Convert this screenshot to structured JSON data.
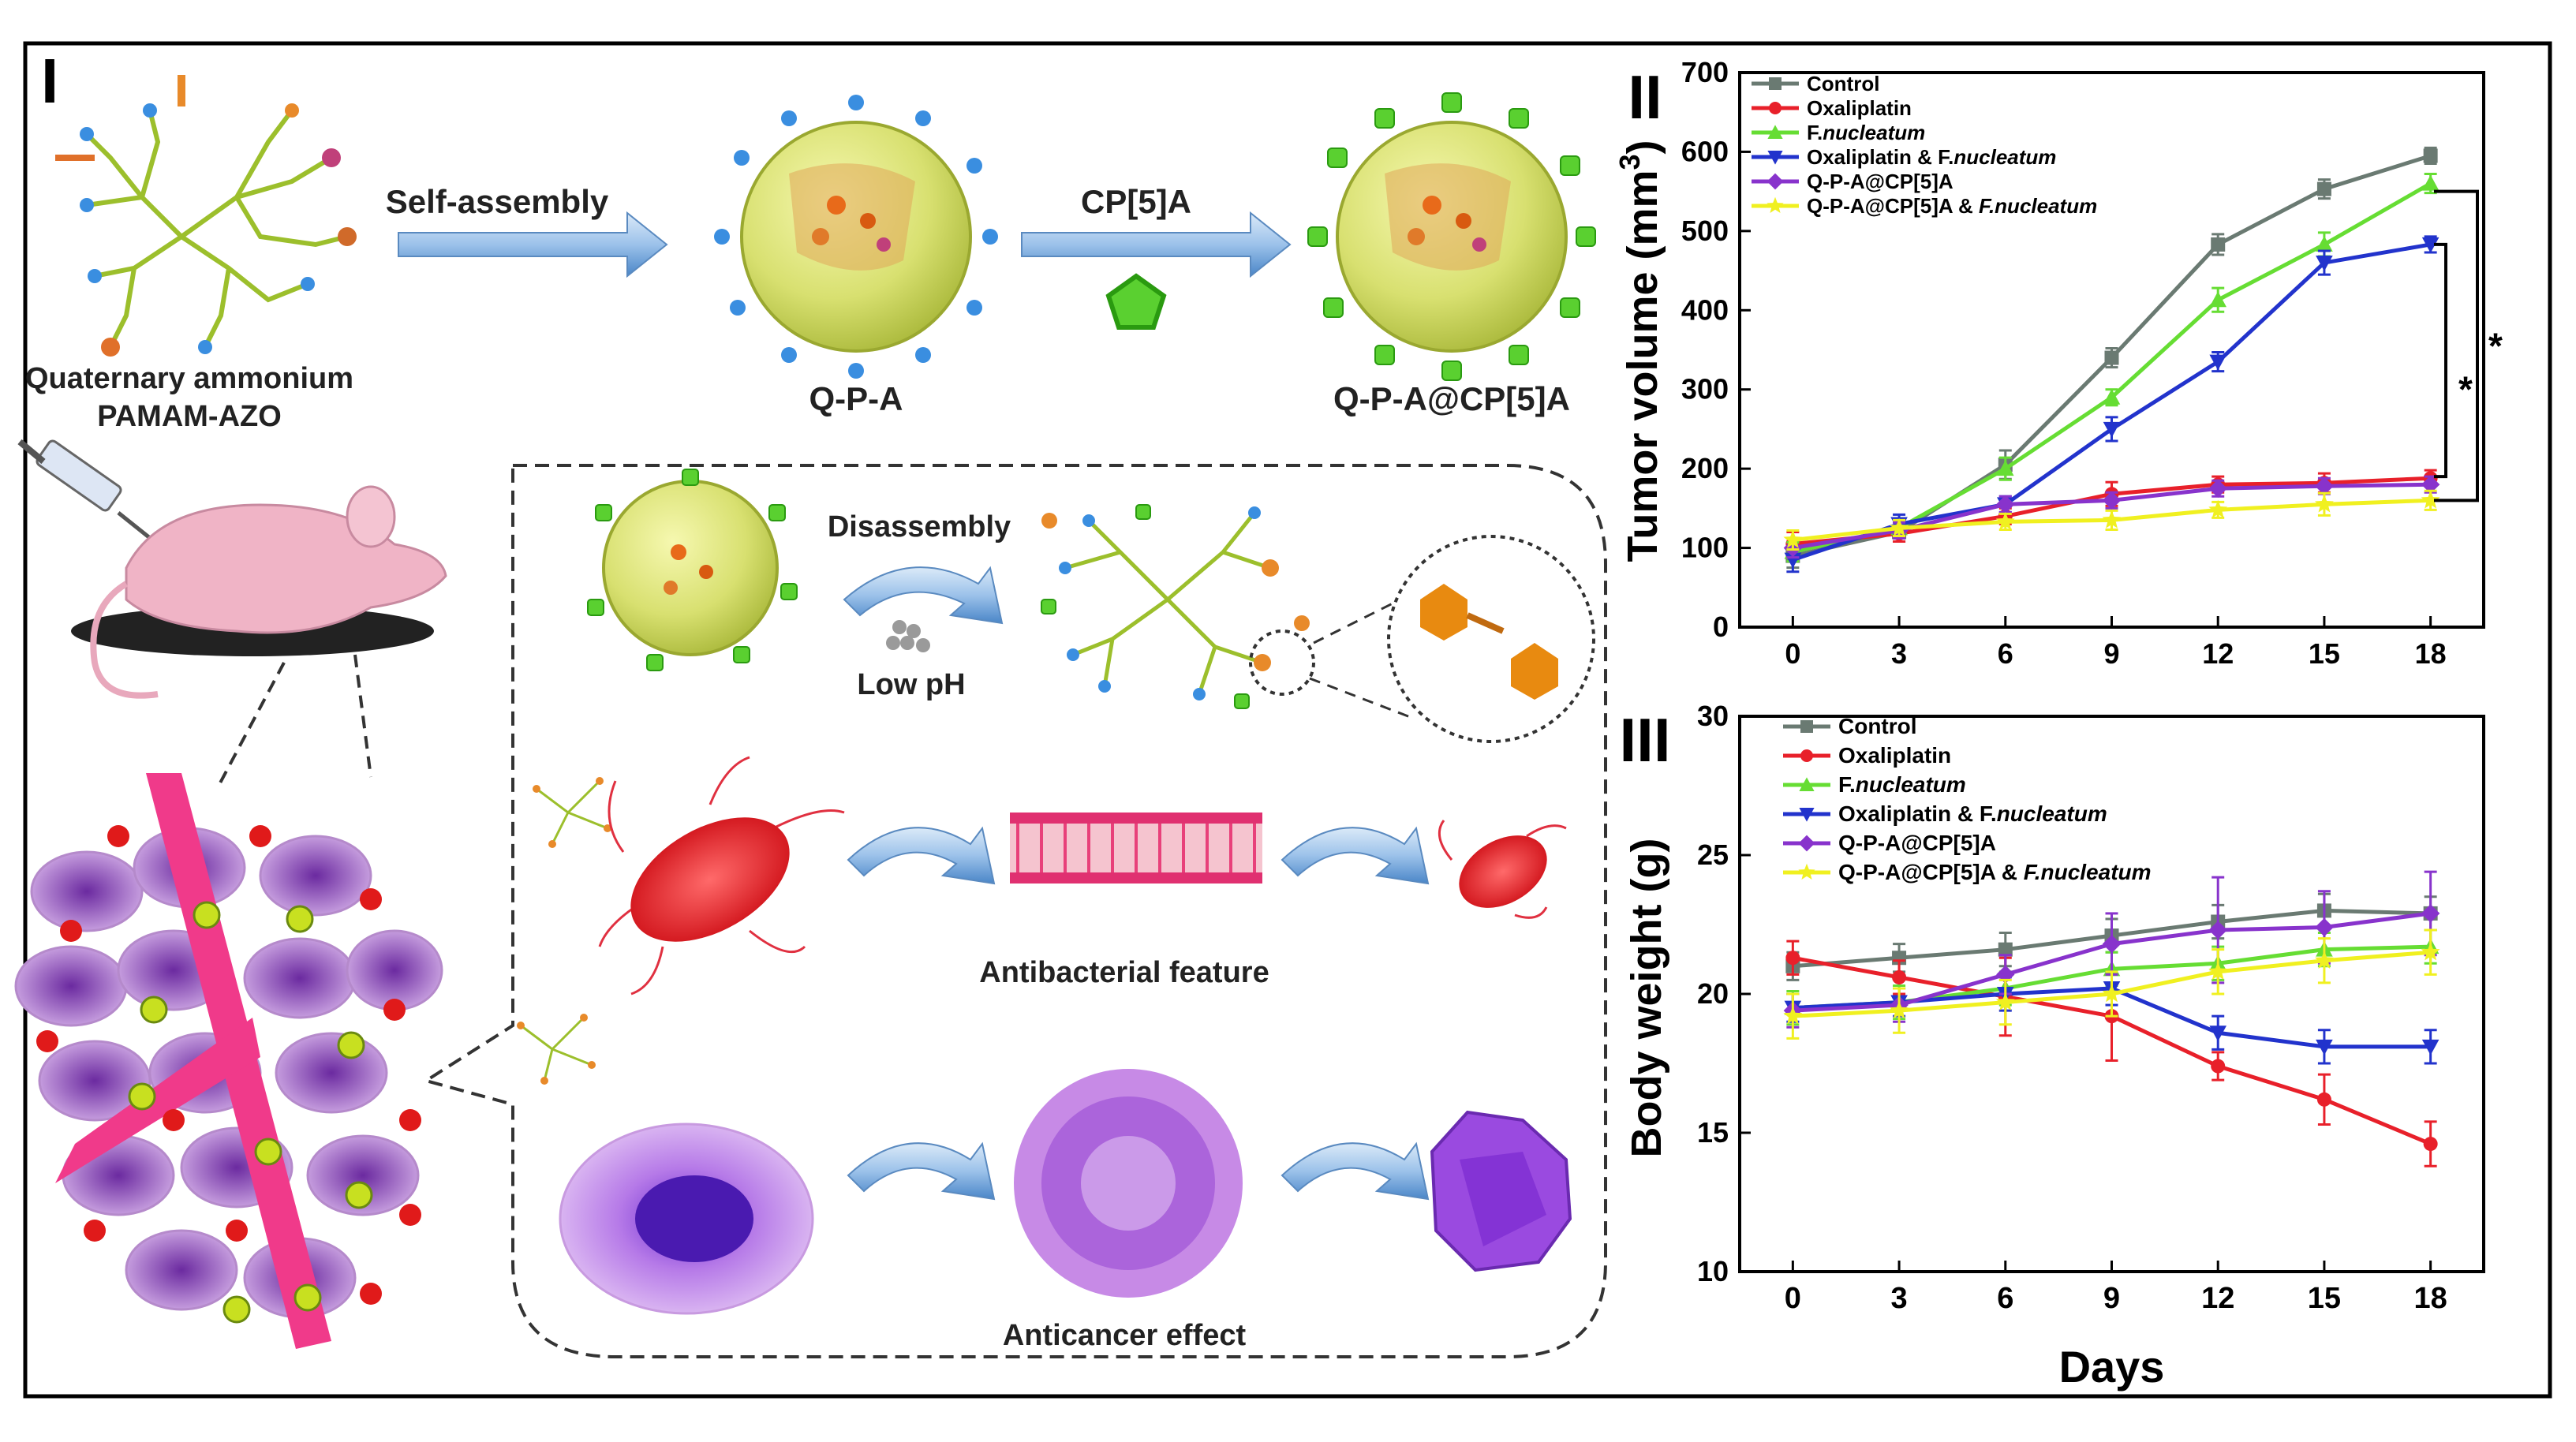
{
  "labels": {
    "panel_1": "I",
    "panel_2": "II",
    "panel_3": "III",
    "self_assembly": "Self-assembly",
    "cp5a": "CP[5]A",
    "precursor_line1": "Quaternary ammonium",
    "precursor_line2": "PAMAM-AZO",
    "qpa": "Q-P-A",
    "qpa_cp5a": "Q-P-A@CP[5]A",
    "disassembly": "Disassembly",
    "low_ph": "Low pH",
    "antibacterial": "Antibacterial feature",
    "anticancer": "Anticancer effect"
  },
  "colors": {
    "control": "#6a7a72",
    "oxaliplatin": "#e8202a",
    "fnucleatum": "#66dd33",
    "oxa_fn": "#2233cc",
    "qpa_cp5a": "#8833cc",
    "qpa_cp5a_fn": "#f0f020"
  },
  "chart_data": [
    {
      "type": "line",
      "panel": "II",
      "ylabel": "Tumor volume (mm",
      "ylabel_sup": "3",
      "ylabel_close": ")",
      "x": [
        0,
        3,
        6,
        9,
        12,
        15,
        18
      ],
      "xticks": [
        "0",
        "3",
        "6",
        "9",
        "12",
        "15",
        "18"
      ],
      "xlim": [
        -1.5,
        19.5
      ],
      "ylim": [
        0,
        700
      ],
      "yticks": [
        "0",
        "100",
        "200",
        "300",
        "400",
        "500",
        "600",
        "700"
      ],
      "significance": [
        "*",
        "*"
      ],
      "series": [
        {
          "name": "Control",
          "style": "normal",
          "color_key": "control",
          "marker": "square",
          "values": [
            90,
            120,
            205,
            340,
            483,
            553,
            595
          ],
          "err": [
            15,
            12,
            18,
            12,
            13,
            12,
            10
          ]
        },
        {
          "name": "Oxaliplatin",
          "style": "normal",
          "color_key": "oxaliplatin",
          "marker": "circle",
          "values": [
            105,
            118,
            140,
            168,
            180,
            182,
            188
          ],
          "err": [
            15,
            10,
            10,
            15,
            10,
            12,
            10
          ]
        },
        {
          "name": "F.nucleatum",
          "prefix": "F.",
          "italic": "nucleatum",
          "style": "mixed",
          "color_key": "fnucleatum",
          "marker": "triangle-up",
          "values": [
            95,
            125,
            200,
            290,
            413,
            483,
            560
          ],
          "err": [
            12,
            12,
            14,
            10,
            15,
            15,
            12
          ]
        },
        {
          "name": "Oxaliplatin & F.nucleatum",
          "prefix": "Oxaliplatin & F.",
          "italic": "nucleatum",
          "style": "mixed",
          "color_key": "oxa_fn",
          "marker": "triangle-down",
          "values": [
            85,
            130,
            155,
            250,
            335,
            460,
            483
          ],
          "err": [
            15,
            12,
            10,
            15,
            12,
            15,
            10
          ]
        },
        {
          "name": "Q-P-A@CP[5]A",
          "style": "normal",
          "color_key": "qpa_cp5a",
          "marker": "diamond",
          "values": [
            100,
            122,
            155,
            160,
            175,
            178,
            180
          ],
          "err": [
            12,
            10,
            10,
            10,
            10,
            10,
            10
          ]
        },
        {
          "name": "Q-P-A@CP[5]A & F.nucleatum",
          "prefix": "Q-P-A@CP[5]A & ",
          "italic": "F.nucleatum",
          "style": "mixed",
          "color_key": "qpa_cp5a_fn",
          "marker": "star",
          "values": [
            110,
            125,
            133,
            135,
            148,
            155,
            160
          ],
          "err": [
            12,
            10,
            10,
            12,
            10,
            14,
            12
          ]
        }
      ]
    },
    {
      "type": "line",
      "panel": "III",
      "ylabel": "Body weight (g)",
      "xlabel": "Days",
      "x": [
        0,
        3,
        6,
        9,
        12,
        15,
        18
      ],
      "xticks": [
        "0",
        "3",
        "6",
        "9",
        "12",
        "15",
        "18"
      ],
      "xlim": [
        -1.5,
        19.5
      ],
      "ylim": [
        10,
        30
      ],
      "yticks": [
        "10",
        "15",
        "20",
        "25",
        "30"
      ],
      "series": [
        {
          "name": "Control",
          "style": "normal",
          "color_key": "control",
          "marker": "square",
          "values": [
            21.0,
            21.3,
            21.6,
            22.1,
            22.6,
            23.0,
            22.9
          ],
          "err": [
            0.5,
            0.5,
            0.6,
            0.6,
            0.6,
            0.6,
            0.6
          ]
        },
        {
          "name": "Oxaliplatin",
          "style": "normal",
          "color_key": "oxaliplatin",
          "marker": "circle",
          "values": [
            21.3,
            20.6,
            19.9,
            19.2,
            17.4,
            16.2,
            14.6
          ],
          "err": [
            0.6,
            0.6,
            1.4,
            1.6,
            0.5,
            0.9,
            0.8
          ]
        },
        {
          "name": "F.nucleatum",
          "prefix": "F.",
          "italic": "nucleatum",
          "style": "mixed",
          "color_key": "fnucleatum",
          "marker": "triangle-up",
          "values": [
            19.5,
            19.7,
            20.2,
            20.9,
            21.1,
            21.6,
            21.7
          ],
          "err": [
            0.6,
            0.6,
            0.6,
            0.6,
            0.6,
            0.6,
            0.6
          ]
        },
        {
          "name": "Oxaliplatin & F.nucleatum",
          "prefix": "Oxaliplatin & F.",
          "italic": "nucleatum",
          "style": "mixed",
          "color_key": "oxa_fn",
          "marker": "triangle-down",
          "values": [
            19.5,
            19.7,
            20.0,
            20.2,
            18.6,
            18.1,
            18.1
          ],
          "err": [
            0.5,
            0.5,
            0.6,
            0.6,
            0.6,
            0.6,
            0.6
          ]
        },
        {
          "name": "Q-P-A@CP[5]A",
          "style": "normal",
          "color_key": "qpa_cp5a",
          "marker": "diamond",
          "values": [
            19.4,
            19.6,
            20.7,
            21.8,
            22.3,
            22.4,
            22.9
          ],
          "err": [
            0.6,
            0.6,
            0.7,
            1.1,
            1.9,
            1.3,
            1.5
          ]
        },
        {
          "name": "Q-P-A@CP[5]A & F.nucleatum",
          "prefix": "Q-P-A@CP[5]A & ",
          "italic": "F.nucleatum",
          "style": "mixed",
          "color_key": "qpa_cp5a_fn",
          "marker": "star",
          "values": [
            19.2,
            19.4,
            19.7,
            20.0,
            20.8,
            21.2,
            21.5
          ],
          "err": [
            0.8,
            0.8,
            0.8,
            0.8,
            0.8,
            0.8,
            0.8
          ]
        }
      ]
    }
  ]
}
